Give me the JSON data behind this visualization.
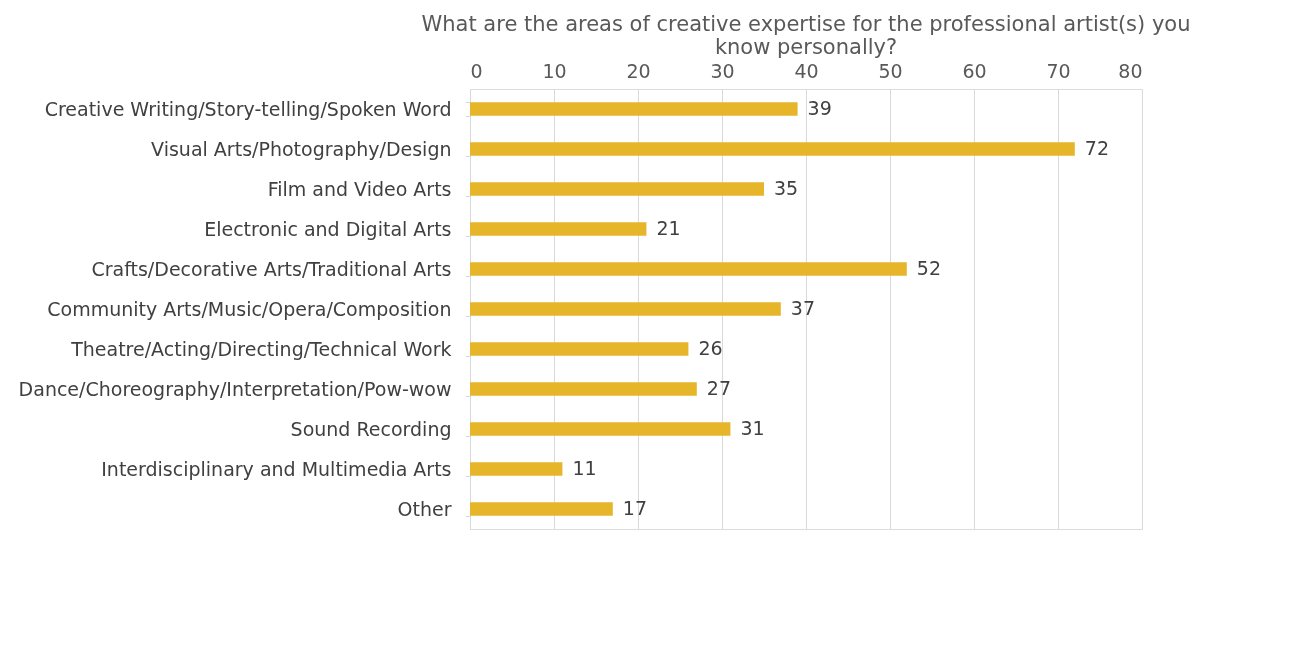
{
  "chart_data": {
    "type": "bar",
    "orientation": "horizontal",
    "title": "What are the areas of creative expertise for the professional artist(s) you know personally?",
    "categories": [
      "Creative Writing/Story-telling/Spoken Word",
      "Visual Arts/Photography/Design",
      "Film and Video Arts",
      "Electronic and Digital Arts",
      "Crafts/Decorative Arts/Traditional Arts",
      "Community Arts/Music/Opera/Composition",
      "Theatre/Acting/Directing/Technical Work",
      "Dance/Choreography/Interpretation/Pow-wow",
      "Sound Recording",
      "Interdisciplinary and Multimedia Arts",
      "Other"
    ],
    "values": [
      39,
      72,
      35,
      21,
      52,
      37,
      26,
      27,
      31,
      11,
      17
    ],
    "color": "#e6b52a",
    "xlim": [
      0,
      80
    ],
    "xticks": [
      0,
      10,
      20,
      30,
      40,
      50,
      60,
      70,
      80
    ],
    "grid": "x",
    "data_labels": true
  }
}
